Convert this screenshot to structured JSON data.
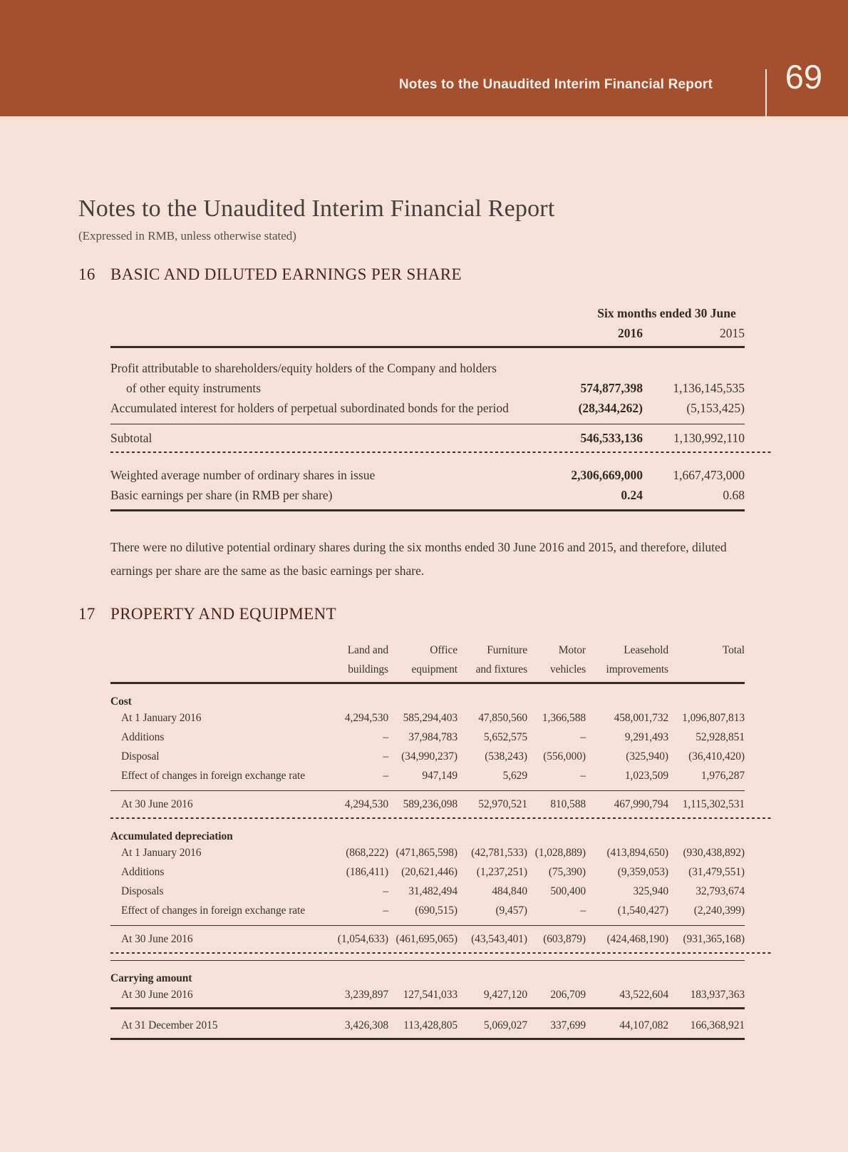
{
  "band": {
    "title": "Notes to the Unaudited Interim Financial Report",
    "page_number": "69"
  },
  "doc": {
    "title": "Notes to the Unaudited Interim Financial Report",
    "subtitle": "(Expressed in RMB, unless otherwise stated)"
  },
  "s16": {
    "number": "16",
    "heading": "BASIC AND DILUTED EARNINGS PER SHARE",
    "table": {
      "period": "Six months ended 30 June",
      "y2016": "2016",
      "y2015": "2015",
      "profit_l1": "Profit attributable to shareholders/equity holders of the Company and holders",
      "profit_l2": "of other equity instruments",
      "profit": [
        "574,877,398",
        "1,136,145,535"
      ],
      "interest_label": "Accumulated interest for holders of perpetual subordinated bonds for the period",
      "interest": [
        "(28,344,262)",
        "(5,153,425)"
      ],
      "subtotal_label": "Subtotal",
      "subtotal": [
        "546,533,136",
        "1,130,992,110"
      ],
      "shares_label": "Weighted average number of ordinary shares in issue",
      "shares": [
        "2,306,669,000",
        "1,667,473,000"
      ],
      "eps_label": "Basic earnings per share (in RMB per share)",
      "eps": [
        "0.24",
        "0.68"
      ]
    },
    "paragraph": "There were no dilutive potential ordinary shares during the six months ended 30 June 2016 and 2015, and therefore, diluted earnings per share are the same as the basic earnings per share."
  },
  "s17": {
    "number": "17",
    "heading": "PROPERTY AND EQUIPMENT",
    "table": {
      "head": [
        {
          "l1": "Land and",
          "l2": "buildings"
        },
        {
          "l1": "Office",
          "l2": "equipment"
        },
        {
          "l1": "Furniture",
          "l2": "and fixtures"
        },
        {
          "l1": "Motor",
          "l2": "vehicles"
        },
        {
          "l1": "Leasehold",
          "l2": "improvements"
        },
        {
          "l1": "",
          "l2": "Total"
        }
      ],
      "cost": {
        "title": "Cost",
        "rows": [
          {
            "label": "At 1 January 2016",
            "c": [
              "4,294,530",
              "585,294,403",
              "47,850,560",
              "1,366,588",
              "458,001,732",
              "1,096,807,813"
            ]
          },
          {
            "label": "Additions",
            "c": [
              "–",
              "37,984,783",
              "5,652,575",
              "–",
              "9,291,493",
              "52,928,851"
            ]
          },
          {
            "label": "Disposal",
            "c": [
              "–",
              "(34,990,237)",
              "(538,243)",
              "(556,000)",
              "(325,940)",
              "(36,410,420)"
            ]
          },
          {
            "label": "Effect of changes in foreign exchange rate",
            "c": [
              "–",
              "947,149",
              "5,629",
              "–",
              "1,023,509",
              "1,976,287"
            ]
          }
        ],
        "closing": {
          "label": "At 30 June 2016",
          "c": [
            "4,294,530",
            "589,236,098",
            "52,970,521",
            "810,588",
            "467,990,794",
            "1,115,302,531"
          ]
        }
      },
      "dep": {
        "title": "Accumulated depreciation",
        "rows": [
          {
            "label": "At 1 January 2016",
            "c": [
              "(868,222)",
              "(471,865,598)",
              "(42,781,533)",
              "(1,028,889)",
              "(413,894,650)",
              "(930,438,892)"
            ]
          },
          {
            "label": "Additions",
            "c": [
              "(186,411)",
              "(20,621,446)",
              "(1,237,251)",
              "(75,390)",
              "(9,359,053)",
              "(31,479,551)"
            ]
          },
          {
            "label": "Disposals",
            "c": [
              "–",
              "31,482,494",
              "484,840",
              "500,400",
              "325,940",
              "32,793,674"
            ]
          },
          {
            "label": "Effect of changes in foreign exchange rate",
            "c": [
              "–",
              "(690,515)",
              "(9,457)",
              "–",
              "(1,540,427)",
              "(2,240,399)"
            ]
          }
        ],
        "closing": {
          "label": "At 30 June 2016",
          "c": [
            "(1,054,633)",
            "(461,695,065)",
            "(43,543,401)",
            "(603,879)",
            "(424,468,190)",
            "(931,365,168)"
          ]
        }
      },
      "carrying": {
        "title": "Carrying amount",
        "rows": [
          {
            "label": "At 30 June 2016",
            "c": [
              "3,239,897",
              "127,541,033",
              "9,427,120",
              "206,709",
              "43,522,604",
              "183,937,363"
            ]
          },
          {
            "label": "At 31 December 2015",
            "c": [
              "3,426,308",
              "113,428,805",
              "5,069,027",
              "337,699",
              "44,107,082",
              "166,368,921"
            ]
          }
        ]
      }
    }
  }
}
